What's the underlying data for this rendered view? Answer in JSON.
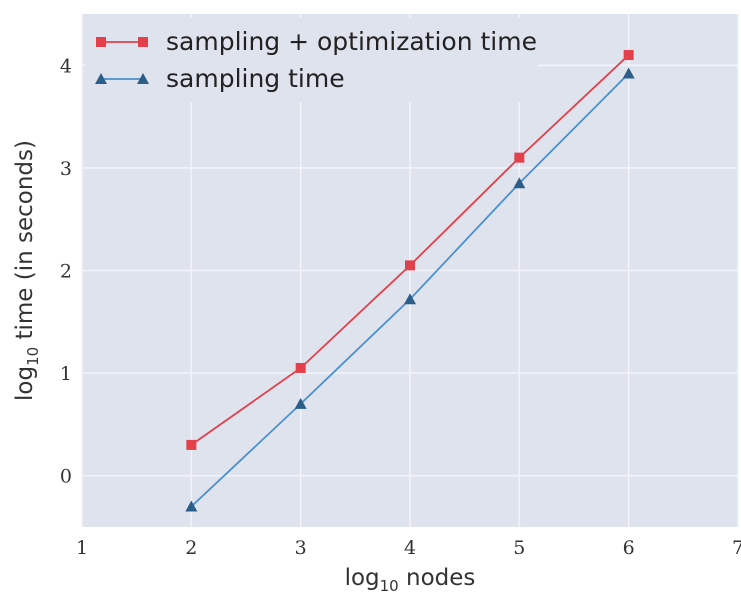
{
  "chart_data": {
    "type": "line",
    "title": "",
    "xlabel": "log10 nodes",
    "xlabel_parts": {
      "base": "log",
      "sub": "10",
      "rest": " nodes"
    },
    "ylabel": "log10 time (in seconds)",
    "ylabel_parts": {
      "base": "log",
      "sub": "10",
      "rest": " time (in seconds)"
    },
    "xlim": [
      1,
      7
    ],
    "ylim": [
      -0.5,
      4.5
    ],
    "xticks": [
      "1",
      "2",
      "3",
      "4",
      "5",
      "6",
      "7"
    ],
    "yticks": [
      "0",
      "1",
      "2",
      "3",
      "4"
    ],
    "grid": true,
    "legend_position": "top-left",
    "series": [
      {
        "name": "sampling + optimization time",
        "color": "#e2404a",
        "marker": "square",
        "x": [
          2,
          3,
          4,
          5,
          6
        ],
        "y": [
          0.3,
          1.05,
          2.05,
          3.1,
          4.1
        ]
      },
      {
        "name": "sampling time",
        "color": "#4a90cf",
        "marker_color": "#2b5f8a",
        "marker": "triangle",
        "x": [
          2,
          3,
          4,
          5,
          6
        ],
        "y": [
          -0.3,
          0.7,
          1.72,
          2.85,
          3.92
        ]
      }
    ],
    "colors": {
      "plot_background": "#dfe3ee",
      "grid": "#f2f3f8"
    }
  }
}
